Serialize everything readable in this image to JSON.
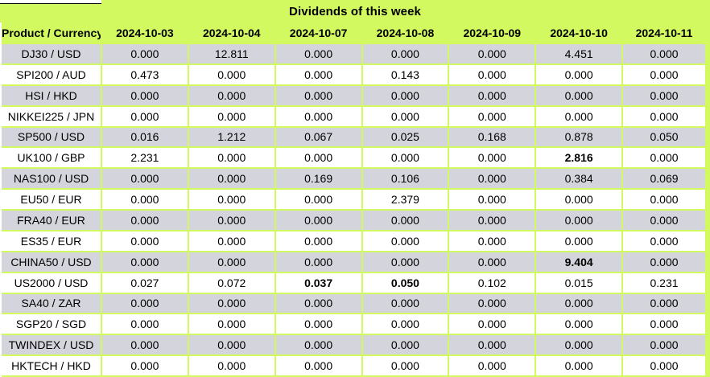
{
  "chart_data": {
    "type": "table",
    "title": "Dividends of this week",
    "columns": [
      "Product / Currency",
      "2024-10-03",
      "2024-10-04",
      "2024-10-07",
      "2024-10-08",
      "2024-10-09",
      "2024-10-10",
      "2024-10-11"
    ],
    "rows": [
      {
        "product": "DJ30 / USD",
        "values": [
          "0.000",
          "12.811",
          "0.000",
          "0.000",
          "0.000",
          "4.451",
          "0.000"
        ],
        "bold": []
      },
      {
        "product": "SPI200 / AUD",
        "values": [
          "0.473",
          "0.000",
          "0.000",
          "0.143",
          "0.000",
          "0.000",
          "0.000"
        ],
        "bold": []
      },
      {
        "product": "HSI / HKD",
        "values": [
          "0.000",
          "0.000",
          "0.000",
          "0.000",
          "0.000",
          "0.000",
          "0.000"
        ],
        "bold": []
      },
      {
        "product": "NIKKEI225 / JPN",
        "values": [
          "0.000",
          "0.000",
          "0.000",
          "0.000",
          "0.000",
          "0.000",
          "0.000"
        ],
        "bold": []
      },
      {
        "product": "SP500 / USD",
        "values": [
          "0.016",
          "1.212",
          "0.067",
          "0.025",
          "0.168",
          "0.878",
          "0.050"
        ],
        "bold": []
      },
      {
        "product": "UK100 / GBP",
        "values": [
          "2.231",
          "0.000",
          "0.000",
          "0.000",
          "0.000",
          "2.816",
          "0.000"
        ],
        "bold": [
          5
        ]
      },
      {
        "product": "NAS100 / USD",
        "values": [
          "0.000",
          "0.000",
          "0.169",
          "0.106",
          "0.000",
          "0.384",
          "0.069"
        ],
        "bold": []
      },
      {
        "product": "EU50 / EUR",
        "values": [
          "0.000",
          "0.000",
          "0.000",
          "2.379",
          "0.000",
          "0.000",
          "0.000"
        ],
        "bold": []
      },
      {
        "product": "FRA40 / EUR",
        "values": [
          "0.000",
          "0.000",
          "0.000",
          "0.000",
          "0.000",
          "0.000",
          "0.000"
        ],
        "bold": []
      },
      {
        "product": "ES35 / EUR",
        "values": [
          "0.000",
          "0.000",
          "0.000",
          "0.000",
          "0.000",
          "0.000",
          "0.000"
        ],
        "bold": []
      },
      {
        "product": "CHINA50 / USD",
        "values": [
          "0.000",
          "0.000",
          "0.000",
          "0.000",
          "0.000",
          "9.404",
          "0.000"
        ],
        "bold": [
          5
        ]
      },
      {
        "product": "US2000 / USD",
        "values": [
          "0.027",
          "0.072",
          "0.037",
          "0.050",
          "0.102",
          "0.015",
          "0.231"
        ],
        "bold": [
          2,
          3
        ]
      },
      {
        "product": "SA40 / ZAR",
        "values": [
          "0.000",
          "0.000",
          "0.000",
          "0.000",
          "0.000",
          "0.000",
          "0.000"
        ],
        "bold": []
      },
      {
        "product": "SGP20 / SGD",
        "values": [
          "0.000",
          "0.000",
          "0.000",
          "0.000",
          "0.000",
          "0.000",
          "0.000"
        ],
        "bold": []
      },
      {
        "product": "TWINDEX / USD",
        "values": [
          "0.000",
          "0.000",
          "0.000",
          "0.000",
          "0.000",
          "0.000",
          "0.000"
        ],
        "bold": []
      },
      {
        "product": "HKTECH / HKD",
        "values": [
          "0.000",
          "0.000",
          "0.000",
          "0.000",
          "0.000",
          "0.000",
          "0.000"
        ],
        "bold": []
      }
    ],
    "layout": {
      "striped_rows": true,
      "first_row_shade": "gray",
      "grid_color": "#d2f95f"
    },
    "colors": {
      "accent_green": "#d2f95f",
      "row_gray": "#d4d4dc",
      "row_white": "#ffffff",
      "text": "#000000"
    }
  }
}
